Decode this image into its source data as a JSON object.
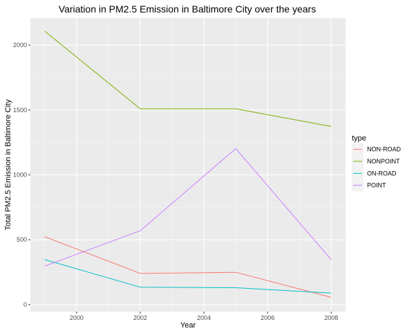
{
  "chart_data": {
    "type": "line",
    "title": "Variation in PM2.5 Emission in Baltimore City over the years",
    "xlabel": "Year",
    "ylabel": "Total PM2.5 Emission in Baltimore City",
    "x": [
      1999,
      2002,
      2005,
      2008
    ],
    "xlim": [
      1998.55,
      2008.45
    ],
    "ylim": [
      -54,
      2209
    ],
    "x_ticks": [
      2000,
      2002,
      2004,
      2006,
      2008
    ],
    "y_ticks": [
      0,
      500,
      1000,
      1500,
      2000
    ],
    "grid": true,
    "legend": {
      "title": "type",
      "placement": "right"
    },
    "series": [
      {
        "name": "NON-ROAD",
        "color": "#f8766d",
        "values": [
          522.9,
          240.8,
          248.9,
          55.8
        ]
      },
      {
        "name": "NONPOINT",
        "color": "#7cae00",
        "values": [
          2107.6,
          1509.5,
          1509.5,
          1373.2
        ]
      },
      {
        "name": "ON-ROAD",
        "color": "#00bfc4",
        "values": [
          346.8,
          134.3,
          130.4,
          88.3
        ]
      },
      {
        "name": "POINT",
        "color": "#c77cff",
        "values": [
          296.8,
          569.3,
          1202.5,
          344.98
        ]
      }
    ]
  }
}
